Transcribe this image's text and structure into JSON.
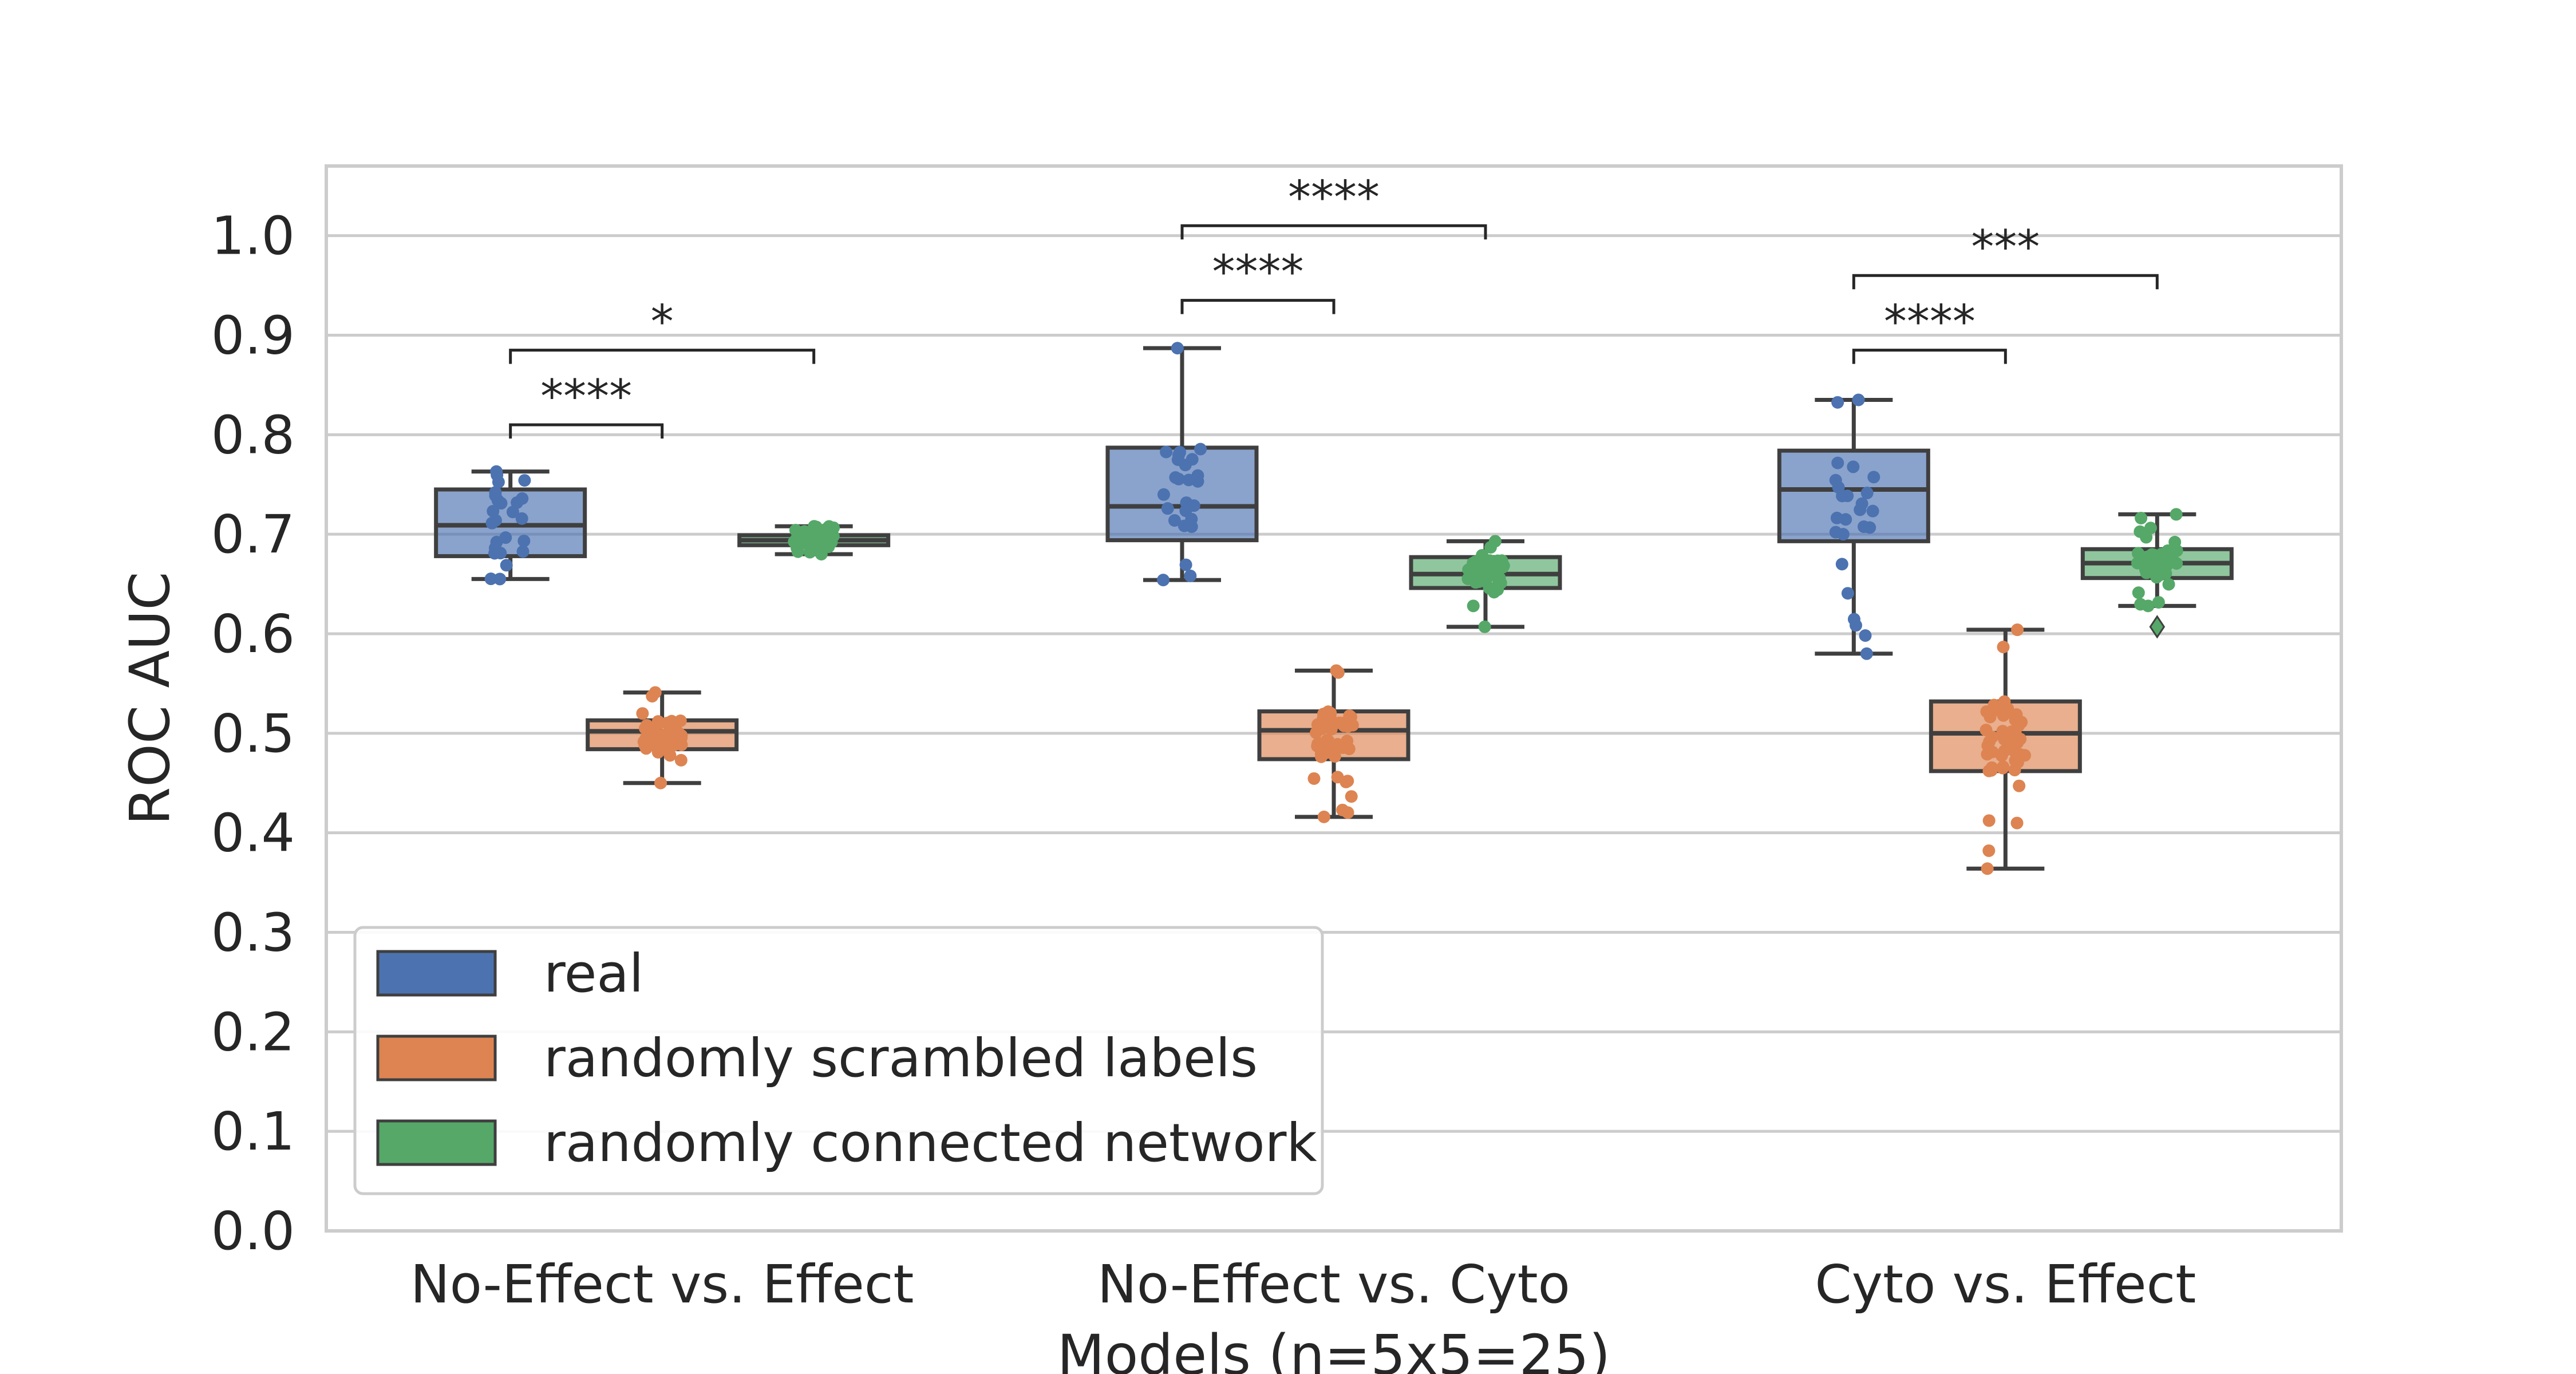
{
  "chart_data": {
    "type": "box",
    "title": "",
    "xlabel": "Models (n=5x5=25)",
    "ylabel": "ROC AUC",
    "ylim": [
      0.0,
      1.07
    ],
    "yticks": [
      "0.0",
      "0.1",
      "0.2",
      "0.3",
      "0.4",
      "0.5",
      "0.6",
      "0.7",
      "0.8",
      "0.9",
      "1.0"
    ],
    "grid": true,
    "legend_position": "lower-left",
    "categories": [
      "No-Effect vs. Effect",
      "No-Effect vs. Cyto",
      "Cyto vs. Effect"
    ],
    "series": [
      {
        "name": "real",
        "color": "#4C72B0",
        "boxes": [
          {
            "whisker_low": 0.655,
            "q1": 0.678,
            "median": 0.709,
            "q3": 0.745,
            "whisker_high": 0.763,
            "mean": 0.71,
            "fliers": []
          },
          {
            "whisker_low": 0.654,
            "q1": 0.694,
            "median": 0.728,
            "q3": 0.787,
            "whisker_high": 0.887,
            "mean": 0.745,
            "fliers": []
          },
          {
            "whisker_low": 0.58,
            "q1": 0.693,
            "median": 0.745,
            "q3": 0.784,
            "whisker_high": 0.835,
            "mean": 0.733,
            "fliers": []
          }
        ]
      },
      {
        "name": "randomly scrambled labels",
        "color": "#DD8452",
        "boxes": [
          {
            "whisker_low": 0.45,
            "q1": 0.484,
            "median": 0.502,
            "q3": 0.513,
            "whisker_high": 0.541,
            "mean": 0.5,
            "fliers": []
          },
          {
            "whisker_low": 0.416,
            "q1": 0.474,
            "median": 0.503,
            "q3": 0.522,
            "whisker_high": 0.563,
            "mean": 0.495,
            "fliers": []
          },
          {
            "whisker_low": 0.364,
            "q1": 0.462,
            "median": 0.5,
            "q3": 0.532,
            "whisker_high": 0.604,
            "mean": 0.5,
            "fliers": []
          }
        ]
      },
      {
        "name": "randomly connected network",
        "color": "#55A868",
        "boxes": [
          {
            "whisker_low": 0.68,
            "q1": 0.689,
            "median": 0.694,
            "q3": 0.699,
            "whisker_high": 0.708,
            "mean": 0.7,
            "fliers": []
          },
          {
            "whisker_low": 0.607,
            "q1": 0.646,
            "median": 0.66,
            "q3": 0.677,
            "whisker_high": 0.693,
            "mean": 0.66,
            "fliers": []
          },
          {
            "whisker_low": 0.628,
            "q1": 0.656,
            "median": 0.671,
            "q3": 0.685,
            "whisker_high": 0.72,
            "mean": 0.672,
            "fliers": [
              0.607
            ]
          }
        ]
      }
    ],
    "annotations": [
      {
        "category": 0,
        "from": 0,
        "to": 1,
        "y": 0.81,
        "text": "****"
      },
      {
        "category": 0,
        "from": 0,
        "to": 2,
        "y": 0.885,
        "text": "*"
      },
      {
        "category": 1,
        "from": 0,
        "to": 1,
        "y": 0.935,
        "text": "****"
      },
      {
        "category": 1,
        "from": 0,
        "to": 2,
        "y": 1.01,
        "text": "****"
      },
      {
        "category": 2,
        "from": 0,
        "to": 1,
        "y": 0.885,
        "text": "****"
      },
      {
        "category": 2,
        "from": 0,
        "to": 2,
        "y": 0.96,
        "text": "***"
      }
    ]
  }
}
